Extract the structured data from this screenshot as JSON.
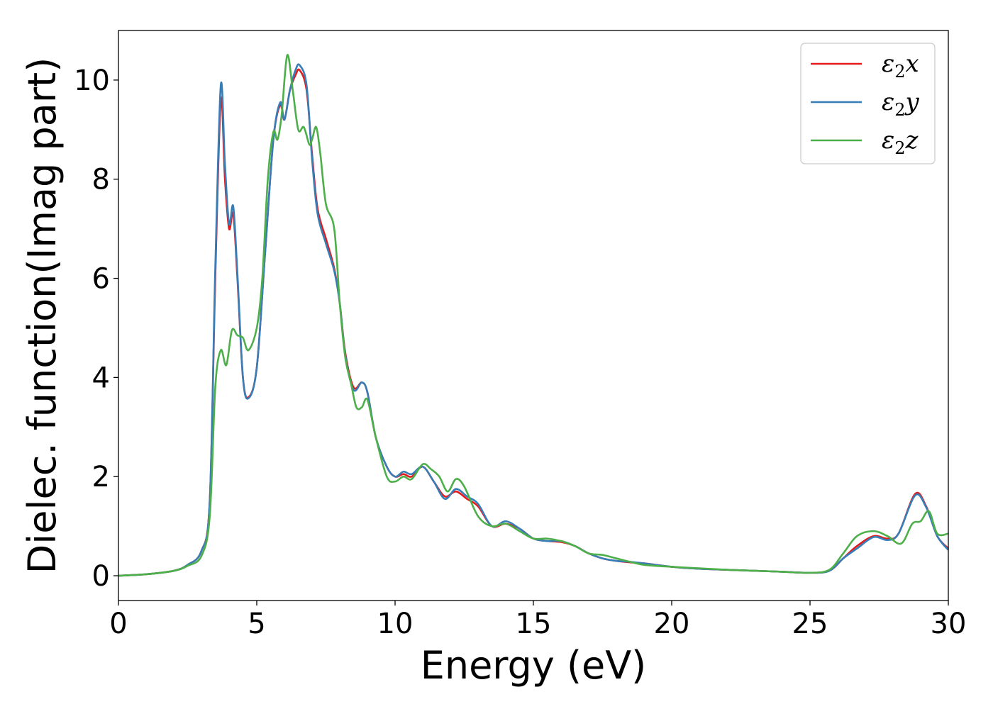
{
  "chart_data": {
    "type": "line",
    "xlabel": "Energy (eV)",
    "ylabel": "Dielec. function(Imag part)",
    "xlim": [
      0,
      30
    ],
    "ylim": [
      -0.5,
      11
    ],
    "xticks": [
      0,
      5,
      10,
      15,
      20,
      25,
      30
    ],
    "yticks": [
      0,
      2,
      4,
      6,
      8,
      10
    ],
    "grid": false,
    "legend_position": "top-right",
    "series": [
      {
        "name": "ε2x",
        "legend": {
          "base": "ε",
          "sub": "2",
          "suffix": "x"
        },
        "color": "#e41a1c",
        "points": [
          [
            0,
            0
          ],
          [
            1,
            0.03
          ],
          [
            2,
            0.1
          ],
          [
            2.5,
            0.22
          ],
          [
            3,
            0.5
          ],
          [
            3.3,
            1.5
          ],
          [
            3.5,
            6.0
          ],
          [
            3.7,
            9.6
          ],
          [
            3.85,
            8.0
          ],
          [
            4.0,
            7.0
          ],
          [
            4.15,
            7.3
          ],
          [
            4.3,
            6.0
          ],
          [
            4.5,
            4.0
          ],
          [
            4.7,
            3.6
          ],
          [
            5.0,
            4.2
          ],
          [
            5.3,
            6.5
          ],
          [
            5.6,
            8.8
          ],
          [
            5.85,
            9.5
          ],
          [
            6.0,
            9.2
          ],
          [
            6.2,
            9.8
          ],
          [
            6.4,
            10.1
          ],
          [
            6.55,
            10.2
          ],
          [
            6.8,
            9.8
          ],
          [
            7.0,
            8.5
          ],
          [
            7.2,
            7.4
          ],
          [
            7.5,
            6.8
          ],
          [
            7.8,
            6.2
          ],
          [
            8.0,
            5.5
          ],
          [
            8.2,
            4.5
          ],
          [
            8.5,
            3.8
          ],
          [
            8.8,
            3.9
          ],
          [
            9.0,
            3.7
          ],
          [
            9.3,
            2.8
          ],
          [
            9.7,
            2.2
          ],
          [
            10.0,
            2.0
          ],
          [
            10.3,
            2.05
          ],
          [
            10.6,
            2.0
          ],
          [
            11.0,
            2.2
          ],
          [
            11.4,
            1.9
          ],
          [
            11.8,
            1.6
          ],
          [
            12.2,
            1.7
          ],
          [
            12.6,
            1.55
          ],
          [
            13.0,
            1.4
          ],
          [
            13.5,
            1.0
          ],
          [
            14.0,
            1.05
          ],
          [
            14.5,
            0.95
          ],
          [
            15.0,
            0.75
          ],
          [
            15.5,
            0.7
          ],
          [
            16.0,
            0.68
          ],
          [
            16.5,
            0.6
          ],
          [
            17.0,
            0.45
          ],
          [
            17.5,
            0.35
          ],
          [
            18.0,
            0.3
          ],
          [
            18.5,
            0.27
          ],
          [
            19.0,
            0.25
          ],
          [
            20.0,
            0.18
          ],
          [
            21.0,
            0.14
          ],
          [
            22.0,
            0.12
          ],
          [
            23.0,
            0.1
          ],
          [
            24.0,
            0.08
          ],
          [
            25.0,
            0.06
          ],
          [
            25.7,
            0.1
          ],
          [
            26.2,
            0.35
          ],
          [
            26.7,
            0.6
          ],
          [
            27.3,
            0.8
          ],
          [
            27.8,
            0.75
          ],
          [
            28.2,
            0.85
          ],
          [
            28.8,
            1.65
          ],
          [
            29.2,
            1.4
          ],
          [
            29.6,
            0.8
          ],
          [
            30.0,
            0.55
          ]
        ]
      },
      {
        "name": "ε2y",
        "legend": {
          "base": "ε",
          "sub": "2",
          "suffix": "y"
        },
        "color": "#377eb8",
        "points": [
          [
            0,
            0
          ],
          [
            1,
            0.03
          ],
          [
            2,
            0.1
          ],
          [
            2.5,
            0.22
          ],
          [
            3,
            0.5
          ],
          [
            3.3,
            1.5
          ],
          [
            3.5,
            6.2
          ],
          [
            3.7,
            9.9
          ],
          [
            3.85,
            8.3
          ],
          [
            4.0,
            7.1
          ],
          [
            4.15,
            7.45
          ],
          [
            4.3,
            6.1
          ],
          [
            4.5,
            4.0
          ],
          [
            4.7,
            3.58
          ],
          [
            5.0,
            4.2
          ],
          [
            5.3,
            6.5
          ],
          [
            5.6,
            8.8
          ],
          [
            5.85,
            9.55
          ],
          [
            6.0,
            9.2
          ],
          [
            6.2,
            9.8
          ],
          [
            6.4,
            10.2
          ],
          [
            6.55,
            10.3
          ],
          [
            6.8,
            9.9
          ],
          [
            7.0,
            8.4
          ],
          [
            7.2,
            7.3
          ],
          [
            7.5,
            6.7
          ],
          [
            7.8,
            6.15
          ],
          [
            8.0,
            5.5
          ],
          [
            8.2,
            4.45
          ],
          [
            8.5,
            3.75
          ],
          [
            8.8,
            3.9
          ],
          [
            9.0,
            3.7
          ],
          [
            9.3,
            2.8
          ],
          [
            9.7,
            2.2
          ],
          [
            10.0,
            2.0
          ],
          [
            10.3,
            2.1
          ],
          [
            10.6,
            2.05
          ],
          [
            11.0,
            2.2
          ],
          [
            11.4,
            1.9
          ],
          [
            11.8,
            1.55
          ],
          [
            12.2,
            1.75
          ],
          [
            12.6,
            1.6
          ],
          [
            13.0,
            1.45
          ],
          [
            13.5,
            1.0
          ],
          [
            14.0,
            1.1
          ],
          [
            14.5,
            0.95
          ],
          [
            15.0,
            0.75
          ],
          [
            15.5,
            0.7
          ],
          [
            16.0,
            0.7
          ],
          [
            16.5,
            0.6
          ],
          [
            17.0,
            0.45
          ],
          [
            17.5,
            0.35
          ],
          [
            18.0,
            0.3
          ],
          [
            18.5,
            0.28
          ],
          [
            19.0,
            0.25
          ],
          [
            20.0,
            0.18
          ],
          [
            21.0,
            0.14
          ],
          [
            22.0,
            0.12
          ],
          [
            23.0,
            0.1
          ],
          [
            24.0,
            0.08
          ],
          [
            25.0,
            0.06
          ],
          [
            25.7,
            0.1
          ],
          [
            26.2,
            0.35
          ],
          [
            26.7,
            0.55
          ],
          [
            27.3,
            0.78
          ],
          [
            27.8,
            0.72
          ],
          [
            28.2,
            0.85
          ],
          [
            28.8,
            1.62
          ],
          [
            29.2,
            1.38
          ],
          [
            29.6,
            0.8
          ],
          [
            30.0,
            0.52
          ]
        ]
      },
      {
        "name": "ε2z",
        "legend": {
          "base": "ε",
          "sub": "2",
          "suffix": "z"
        },
        "color": "#4daf4a",
        "points": [
          [
            0,
            0
          ],
          [
            1,
            0.03
          ],
          [
            2,
            0.1
          ],
          [
            2.5,
            0.2
          ],
          [
            3,
            0.4
          ],
          [
            3.3,
            1.2
          ],
          [
            3.5,
            3.8
          ],
          [
            3.7,
            4.55
          ],
          [
            3.9,
            4.25
          ],
          [
            4.1,
            4.95
          ],
          [
            4.3,
            4.85
          ],
          [
            4.5,
            4.8
          ],
          [
            4.7,
            4.55
          ],
          [
            5.0,
            5.0
          ],
          [
            5.2,
            6.0
          ],
          [
            5.4,
            8.0
          ],
          [
            5.6,
            8.95
          ],
          [
            5.75,
            8.8
          ],
          [
            5.9,
            9.3
          ],
          [
            6.1,
            10.5
          ],
          [
            6.3,
            9.8
          ],
          [
            6.5,
            9.0
          ],
          [
            6.7,
            9.05
          ],
          [
            6.9,
            8.7
          ],
          [
            7.0,
            8.8
          ],
          [
            7.15,
            9.05
          ],
          [
            7.3,
            8.5
          ],
          [
            7.5,
            7.5
          ],
          [
            7.8,
            7.0
          ],
          [
            8.0,
            5.5
          ],
          [
            8.2,
            4.4
          ],
          [
            8.4,
            3.9
          ],
          [
            8.6,
            3.4
          ],
          [
            8.8,
            3.4
          ],
          [
            9.0,
            3.55
          ],
          [
            9.3,
            2.8
          ],
          [
            9.7,
            2.0
          ],
          [
            10.0,
            1.9
          ],
          [
            10.3,
            2.0
          ],
          [
            10.6,
            1.95
          ],
          [
            11.0,
            2.25
          ],
          [
            11.3,
            2.15
          ],
          [
            11.6,
            2.0
          ],
          [
            11.9,
            1.7
          ],
          [
            12.2,
            1.95
          ],
          [
            12.5,
            1.8
          ],
          [
            13.0,
            1.2
          ],
          [
            13.5,
            1.0
          ],
          [
            14.0,
            1.05
          ],
          [
            14.5,
            0.9
          ],
          [
            15.0,
            0.75
          ],
          [
            15.5,
            0.75
          ],
          [
            16.0,
            0.7
          ],
          [
            16.5,
            0.6
          ],
          [
            17.0,
            0.45
          ],
          [
            17.5,
            0.42
          ],
          [
            18.0,
            0.35
          ],
          [
            18.5,
            0.28
          ],
          [
            19.0,
            0.22
          ],
          [
            20.0,
            0.18
          ],
          [
            21.0,
            0.15
          ],
          [
            22.0,
            0.12
          ],
          [
            23.0,
            0.1
          ],
          [
            24.0,
            0.08
          ],
          [
            25.0,
            0.06
          ],
          [
            25.7,
            0.12
          ],
          [
            26.2,
            0.45
          ],
          [
            26.7,
            0.8
          ],
          [
            27.3,
            0.9
          ],
          [
            27.8,
            0.8
          ],
          [
            28.3,
            0.65
          ],
          [
            28.7,
            1.05
          ],
          [
            29.0,
            1.1
          ],
          [
            29.3,
            1.3
          ],
          [
            29.6,
            0.85
          ],
          [
            30.0,
            0.85
          ]
        ]
      }
    ]
  }
}
